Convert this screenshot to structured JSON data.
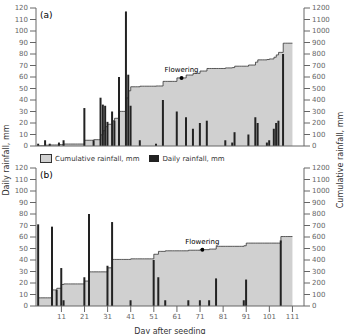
{
  "chart_data": [
    {
      "type": "bar",
      "title": "(a)",
      "ylabel": "Daily rainfall, mm",
      "y2label": "Cumulative rainfall, mm",
      "x": [
        1,
        2,
        3,
        4,
        5,
        6,
        7,
        8,
        9,
        10,
        11,
        12,
        13,
        14,
        15,
        16,
        17,
        18,
        19,
        20,
        21,
        22,
        23,
        24,
        25,
        26,
        27,
        28,
        29,
        30,
        31,
        32,
        33,
        34,
        35,
        36,
        37,
        38,
        39,
        40,
        41,
        42,
        43,
        44,
        45,
        46,
        47,
        48,
        49,
        50,
        51,
        52,
        53,
        54,
        55,
        56,
        57,
        58,
        59,
        60,
        61,
        62,
        63,
        64,
        65,
        66,
        67,
        68,
        69,
        70,
        71,
        72,
        73,
        74,
        75,
        76,
        77,
        78,
        79,
        80,
        81,
        82,
        83,
        84,
        85,
        86,
        87,
        88,
        89,
        90,
        91,
        92,
        93,
        94,
        95,
        96,
        97,
        98,
        99,
        100,
        101,
        102,
        103,
        104,
        105,
        106,
        107,
        108,
        109,
        110,
        111
      ],
      "series": [
        {
          "type": "area",
          "line_style": "step",
          "color": "#d0d0d0",
          "axis": "y2",
          "values": [
            2,
            2,
            2,
            7,
            7,
            9,
            9,
            9,
            9,
            12,
            12,
            17,
            17,
            17,
            17,
            17,
            17,
            17,
            17,
            17,
            50,
            50,
            50,
            50,
            55,
            55,
            55,
            97,
            133,
            168,
            189,
            189,
            219,
            241,
            241,
            301,
            301,
            301,
            418,
            480,
            515,
            515,
            515,
            515,
            520,
            520,
            520,
            520,
            520,
            520,
            520,
            522,
            522,
            522,
            562,
            562,
            562,
            562,
            562,
            562,
            592,
            592,
            592,
            592,
            617,
            617,
            617,
            632,
            632,
            632,
            652,
            652,
            652,
            674,
            674,
            674,
            674,
            674,
            674,
            674,
            674,
            679,
            679,
            679,
            682,
            694,
            694,
            694,
            694,
            694,
            694,
            704,
            704,
            704,
            729,
            749,
            749,
            749,
            749,
            752,
            757,
            757,
            772,
            792,
            814,
            814,
            894,
            894,
            894,
            894,
            894
          ]
        },
        {
          "type": "bar",
          "color": "#222222",
          "values": [
            2,
            0,
            0,
            5,
            0,
            2,
            0,
            0,
            0,
            3,
            0,
            5,
            0,
            0,
            0,
            0,
            0,
            0,
            0,
            0,
            33,
            0,
            0,
            0,
            5,
            0,
            0,
            42,
            36,
            35,
            21,
            0,
            30,
            22,
            0,
            60,
            0,
            0,
            117,
            62,
            35,
            0,
            0,
            0,
            5,
            0,
            0,
            0,
            0,
            0,
            0,
            2,
            0,
            0,
            40,
            0,
            0,
            0,
            0,
            0,
            30,
            0,
            0,
            0,
            25,
            0,
            0,
            15,
            0,
            0,
            20,
            0,
            0,
            22,
            0,
            0,
            0,
            0,
            0,
            0,
            0,
            5,
            0,
            0,
            3,
            12,
            0,
            0,
            0,
            0,
            0,
            10,
            0,
            0,
            25,
            20,
            0,
            0,
            0,
            3,
            5,
            0,
            15,
            20,
            22,
            0,
            80,
            0,
            0,
            0,
            0
          ]
        }
      ],
      "xlim": [
        0,
        116
      ],
      "xticks": [
        11,
        21,
        31,
        41,
        51,
        61,
        71,
        81,
        91,
        101,
        111
      ],
      "ylim": [
        0,
        120
      ],
      "yticks": [
        0,
        10,
        20,
        30,
        40,
        50,
        60,
        70,
        80,
        90,
        100,
        110,
        120
      ],
      "y2lim": [
        0,
        1200
      ],
      "y2ticks": [
        0,
        100,
        200,
        300,
        400,
        500,
        600,
        700,
        800,
        900,
        1000,
        1100,
        1200
      ],
      "tick_labels": "y",
      "annotations": [
        {
          "text": "Flowering",
          "x": 63,
          "y": 592,
          "axis": "y2"
        }
      ]
    },
    {
      "type": "bar",
      "title": "(b)",
      "xlabel": "Day after seeding",
      "legend": "upper left",
      "x": [
        1,
        2,
        3,
        4,
        5,
        6,
        7,
        8,
        9,
        10,
        11,
        12,
        13,
        14,
        15,
        16,
        17,
        18,
        19,
        20,
        21,
        22,
        23,
        24,
        25,
        26,
        27,
        28,
        29,
        30,
        31,
        32,
        33,
        34,
        35,
        36,
        37,
        38,
        39,
        40,
        41,
        42,
        43,
        44,
        45,
        46,
        47,
        48,
        49,
        50,
        51,
        52,
        53,
        54,
        55,
        56,
        57,
        58,
        59,
        60,
        61,
        62,
        63,
        64,
        65,
        66,
        67,
        68,
        69,
        70,
        71,
        72,
        73,
        74,
        75,
        76,
        77,
        78,
        79,
        80,
        81,
        82,
        83,
        84,
        85,
        86,
        87,
        88,
        89,
        90,
        91,
        92,
        93,
        94,
        95,
        96,
        97,
        98,
        99,
        100,
        101,
        102,
        103,
        104,
        105,
        106,
        107,
        108,
        109,
        110,
        111
      ],
      "series": [
        {
          "name": "Cumulative rainfall, mm",
          "type": "area",
          "line_style": "step",
          "color": "#d0d0d0",
          "axis": "y2",
          "values": [
            71,
            71,
            71,
            71,
            71,
            71,
            140,
            140,
            154,
            154,
            187,
            192,
            192,
            192,
            192,
            192,
            192,
            192,
            192,
            192,
            217,
            217,
            297,
            297,
            297,
            297,
            297,
            297,
            297,
            297,
            332,
            332,
            405,
            405,
            405,
            405,
            405,
            405,
            405,
            405,
            410,
            410,
            410,
            410,
            410,
            410,
            410,
            410,
            410,
            410,
            450,
            450,
            475,
            475,
            475,
            480,
            480,
            480,
            480,
            480,
            480,
            480,
            480,
            480,
            480,
            485,
            485,
            485,
            485,
            485,
            490,
            490,
            490,
            490,
            495,
            495,
            495,
            519,
            519,
            519,
            519,
            519,
            519,
            519,
            519,
            519,
            519,
            519,
            519,
            524,
            547,
            547,
            547,
            547,
            547,
            547,
            547,
            547,
            547,
            547,
            547,
            547,
            547,
            547,
            547,
            604,
            604,
            604,
            604,
            604,
            604
          ]
        },
        {
          "name": "Daily rainfall, mm",
          "type": "bar",
          "color": "#222222",
          "values": [
            71,
            0,
            0,
            0,
            0,
            0,
            69,
            0,
            14,
            0,
            33,
            5,
            0,
            0,
            0,
            0,
            0,
            0,
            0,
            0,
            25,
            0,
            80,
            0,
            0,
            0,
            0,
            0,
            0,
            0,
            35,
            0,
            73,
            0,
            0,
            0,
            0,
            0,
            0,
            0,
            5,
            0,
            0,
            0,
            0,
            0,
            0,
            0,
            0,
            0,
            40,
            0,
            25,
            0,
            0,
            5,
            0,
            0,
            0,
            0,
            0,
            0,
            0,
            0,
            0,
            5,
            0,
            0,
            0,
            0,
            5,
            0,
            0,
            0,
            5,
            0,
            0,
            24,
            0,
            0,
            0,
            0,
            0,
            0,
            0,
            0,
            0,
            0,
            0,
            5,
            23,
            0,
            0,
            0,
            0,
            0,
            0,
            0,
            0,
            0,
            0,
            0,
            0,
            0,
            0,
            57,
            0,
            0,
            0,
            0,
            0
          ]
        }
      ],
      "xlim": [
        0,
        116
      ],
      "xticks": [
        11,
        21,
        31,
        41,
        51,
        61,
        71,
        81,
        91,
        101,
        111
      ],
      "ylim": [
        0,
        120
      ],
      "yticks": [
        0,
        10,
        20,
        30,
        40,
        50,
        60,
        70,
        80,
        90,
        100,
        110,
        120
      ],
      "y2lim": [
        0,
        1200
      ],
      "y2ticks": [
        0,
        100,
        200,
        300,
        400,
        500,
        600,
        700,
        800,
        900,
        1000,
        1100,
        1200
      ],
      "annotations": [
        {
          "text": "Flowering",
          "x": 72,
          "y": 490,
          "axis": "y2"
        }
      ]
    }
  ]
}
